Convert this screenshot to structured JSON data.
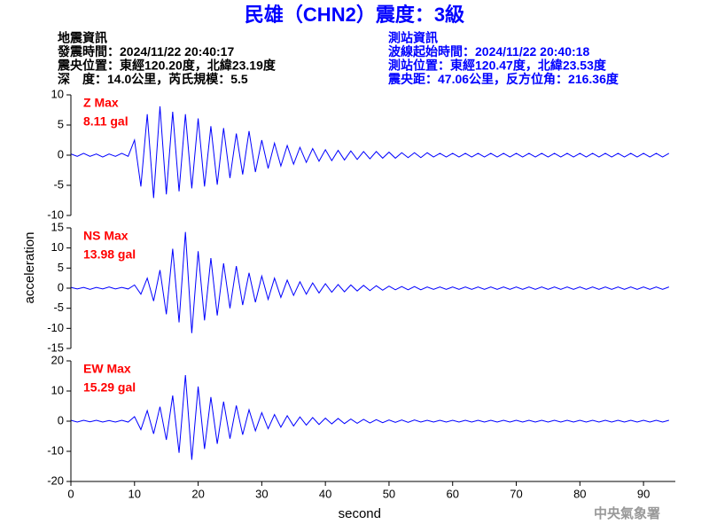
{
  "header": {
    "title": "民雄（CHN2）震度：3級",
    "left": [
      "地震資訊",
      "發震時間：2024/11/22 20:40:17",
      "震央位置：東經120.20度，北緯23.19度",
      "深　度：14.0公里，芮氏規模：5.5"
    ],
    "right": [
      "測站資訊",
      "波線起始時間：2024/11/22 20:40:18",
      "測站位置：東經120.47度，北緯23.53度",
      "震央距：47.06公里，反方位角：216.36度"
    ]
  },
  "footer": "中央氣象署",
  "chart_data": [
    {
      "type": "line",
      "label": "Z Max",
      "max_label": "8.11 gal",
      "ylim": [
        -10,
        10
      ],
      "yticks": [
        -10,
        -5,
        0,
        5,
        10
      ],
      "x": [
        0,
        1,
        2,
        3,
        4,
        5,
        6,
        7,
        8,
        9,
        10,
        11,
        12,
        13,
        14,
        15,
        16,
        17,
        18,
        19,
        20,
        21,
        22,
        23,
        24,
        25,
        26,
        27,
        28,
        29,
        30,
        31,
        32,
        33,
        34,
        35,
        36,
        37,
        38,
        39,
        40,
        41,
        42,
        43,
        44,
        45,
        46,
        47,
        48,
        49,
        50,
        51,
        52,
        53,
        54,
        55,
        56,
        57,
        58,
        59,
        60,
        61,
        62,
        63,
        64,
        65,
        66,
        67,
        68,
        69,
        70,
        71,
        72,
        73,
        74,
        75,
        76,
        77,
        78,
        79,
        80,
        81,
        82,
        83,
        84,
        85,
        86,
        87,
        88,
        89,
        90,
        91,
        92,
        93,
        94
      ],
      "xlim": [
        0,
        95
      ],
      "series": [
        {
          "color": "#0000ff",
          "values": [
            0.2,
            -0.2,
            0.3,
            -0.2,
            0.2,
            -0.3,
            0.2,
            -0.2,
            0.3,
            -0.2,
            2.5,
            -5.2,
            6.8,
            -7.1,
            8.1,
            -6.5,
            7.2,
            -6.0,
            6.8,
            -5.5,
            6.1,
            -5.2,
            4.8,
            -4.9,
            4.5,
            -3.8,
            3.6,
            -3.2,
            4.0,
            -2.8,
            2.5,
            -2.2,
            2.0,
            -1.8,
            1.6,
            -1.5,
            1.3,
            -1.2,
            1.1,
            -1.0,
            0.9,
            -0.9,
            0.8,
            -0.8,
            0.7,
            -0.7,
            0.6,
            -0.6,
            0.6,
            -0.5,
            0.5,
            -0.5,
            0.4,
            -0.4,
            0.4,
            -0.4,
            0.4,
            -0.3,
            0.3,
            -0.3,
            0.3,
            -0.3,
            0.3,
            -0.3,
            0.3,
            -0.3,
            0.3,
            -0.3,
            0.3,
            -0.3,
            0.3,
            -0.3,
            0.3,
            -0.3,
            0.3,
            -0.3,
            0.3,
            -0.3,
            0.3,
            -0.3,
            0.3,
            -0.3,
            0.3,
            -0.3,
            0.3,
            -0.3,
            0.3,
            -0.3,
            0.3,
            -0.3,
            0.3,
            -0.3,
            0.3,
            -0.3,
            0.3
          ]
        }
      ]
    },
    {
      "type": "line",
      "label": "NS Max",
      "max_label": "13.98 gal",
      "ylim": [
        -15,
        15
      ],
      "yticks": [
        -15,
        -10,
        -5,
        0,
        5,
        10,
        15
      ],
      "ylabel": "acceleration",
      "x": [
        0,
        1,
        2,
        3,
        4,
        5,
        6,
        7,
        8,
        9,
        10,
        11,
        12,
        13,
        14,
        15,
        16,
        17,
        18,
        19,
        20,
        21,
        22,
        23,
        24,
        25,
        26,
        27,
        28,
        29,
        30,
        31,
        32,
        33,
        34,
        35,
        36,
        37,
        38,
        39,
        40,
        41,
        42,
        43,
        44,
        45,
        46,
        47,
        48,
        49,
        50,
        51,
        52,
        53,
        54,
        55,
        56,
        57,
        58,
        59,
        60,
        61,
        62,
        63,
        64,
        65,
        66,
        67,
        68,
        69,
        70,
        71,
        72,
        73,
        74,
        75,
        76,
        77,
        78,
        79,
        80,
        81,
        82,
        83,
        84,
        85,
        86,
        87,
        88,
        89,
        90,
        91,
        92,
        93,
        94
      ],
      "xlim": [
        0,
        95
      ],
      "series": [
        {
          "color": "#0000ff",
          "values": [
            0.2,
            -0.2,
            0.2,
            -0.3,
            0.2,
            -0.2,
            0.3,
            -0.2,
            0.2,
            -0.2,
            0.8,
            -1.5,
            2.5,
            -3.2,
            4.5,
            -6.5,
            9.8,
            -8.5,
            13.98,
            -11.2,
            9.2,
            -8.0,
            7.5,
            -6.8,
            6.2,
            -5.0,
            5.5,
            -4.2,
            3.8,
            -3.5,
            3.0,
            -2.8,
            2.5,
            -2.3,
            2.0,
            -1.8,
            1.6,
            -1.5,
            1.3,
            -1.2,
            1.1,
            -1.0,
            0.9,
            -0.9,
            0.8,
            -0.7,
            0.7,
            -0.6,
            0.6,
            -0.5,
            0.5,
            -0.4,
            0.4,
            -0.4,
            0.4,
            -0.4,
            0.3,
            -0.3,
            0.3,
            -0.3,
            0.3,
            -0.3,
            0.3,
            -0.3,
            0.3,
            -0.3,
            0.3,
            -0.3,
            0.3,
            -0.3,
            0.3,
            -0.3,
            0.3,
            -0.3,
            0.3,
            -0.3,
            0.3,
            -0.3,
            0.3,
            -0.3,
            0.3,
            -0.3,
            0.3,
            -0.3,
            0.3,
            -0.3,
            0.3,
            -0.3,
            0.3,
            -0.3,
            0.3,
            -0.3,
            0.3,
            -0.3,
            0.3
          ]
        }
      ]
    },
    {
      "type": "line",
      "label": "EW Max",
      "max_label": "15.29 gal",
      "ylim": [
        -20,
        20
      ],
      "yticks": [
        -20,
        -10,
        0,
        10,
        20
      ],
      "xlabel": "second",
      "x": [
        0,
        1,
        2,
        3,
        4,
        5,
        6,
        7,
        8,
        9,
        10,
        11,
        12,
        13,
        14,
        15,
        16,
        17,
        18,
        19,
        20,
        21,
        22,
        23,
        24,
        25,
        26,
        27,
        28,
        29,
        30,
        31,
        32,
        33,
        34,
        35,
        36,
        37,
        38,
        39,
        40,
        41,
        42,
        43,
        44,
        45,
        46,
        47,
        48,
        49,
        50,
        51,
        52,
        53,
        54,
        55,
        56,
        57,
        58,
        59,
        60,
        61,
        62,
        63,
        64,
        65,
        66,
        67,
        68,
        69,
        70,
        71,
        72,
        73,
        74,
        75,
        76,
        77,
        78,
        79,
        80,
        81,
        82,
        83,
        84,
        85,
        86,
        87,
        88,
        89,
        90,
        91,
        92,
        93,
        94
      ],
      "xlim": [
        0,
        95
      ],
      "xticks": [
        0,
        10,
        20,
        30,
        40,
        50,
        60,
        70,
        80,
        90
      ],
      "series": [
        {
          "color": "#0000ff",
          "values": [
            0.3,
            -0.3,
            0.3,
            -0.2,
            0.3,
            -0.3,
            0.2,
            -0.3,
            0.3,
            -0.3,
            1.5,
            -2.8,
            3.5,
            -4.2,
            4.8,
            -6.2,
            8.5,
            -10.5,
            15.29,
            -12.8,
            11.5,
            -9.2,
            8.0,
            -7.5,
            6.5,
            -5.8,
            5.2,
            -4.5,
            3.8,
            -3.2,
            2.8,
            -2.5,
            2.2,
            -2.0,
            1.8,
            -1.6,
            1.4,
            -1.3,
            1.2,
            -1.1,
            1.0,
            -0.9,
            0.9,
            -0.8,
            0.7,
            -0.7,
            0.6,
            -0.6,
            0.5,
            -0.5,
            0.4,
            -0.4,
            0.4,
            -0.4,
            0.4,
            -0.3,
            0.3,
            -0.3,
            0.3,
            -0.3,
            0.3,
            -0.3,
            0.3,
            -0.3,
            0.3,
            -0.3,
            0.3,
            -0.3,
            0.3,
            -0.3,
            0.3,
            -0.3,
            0.3,
            -0.3,
            0.3,
            -0.3,
            0.3,
            -0.3,
            0.3,
            -0.3,
            0.3,
            -0.3,
            0.3,
            -0.3,
            0.3,
            -0.3,
            0.3,
            -0.3,
            0.3,
            -0.3,
            0.3,
            -0.3,
            0.3,
            -0.3,
            0.3
          ]
        }
      ]
    }
  ]
}
